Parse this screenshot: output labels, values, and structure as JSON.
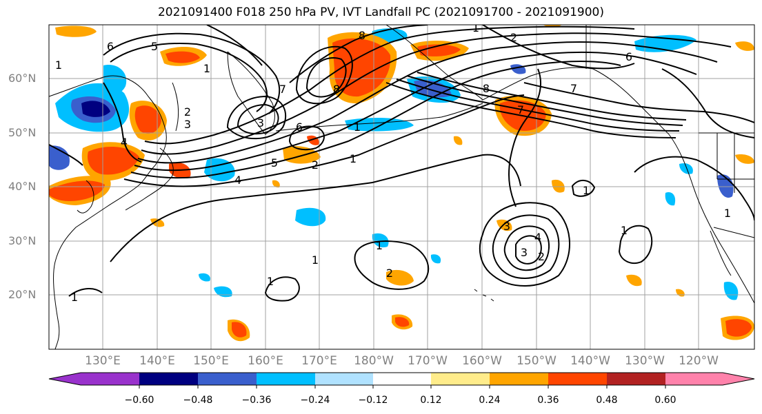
{
  "title": "2021091400 F018 250 hPa PV, IVT Landfall PC (2021091700 - 2021091900)",
  "map": {
    "latitude_labels": [
      "60°N",
      "50°N",
      "40°N",
      "30°N",
      "20°N"
    ],
    "longitude_labels": [
      "130°E",
      "140°E",
      "150°E",
      "160°E",
      "170°E",
      "180°W",
      "170°W",
      "160°W",
      "150°W",
      "140°W",
      "130°W",
      "120°W"
    ],
    "contour_labels": [
      "1",
      "2",
      "3",
      "4",
      "5",
      "6",
      "7",
      "8"
    ]
  },
  "colorbar": {
    "tick_labels": [
      "−0.60",
      "−0.48",
      "−0.36",
      "−0.24",
      "−0.12",
      "0.12",
      "0.24",
      "0.36",
      "0.48",
      "0.60"
    ],
    "colors": [
      "#9932cc",
      "#000080",
      "#3a5fcd",
      "#00bfff",
      "#b0e2ff",
      "#ffffff",
      "#ffec8b",
      "#ffa500",
      "#ff4500",
      "#b22222",
      "#ff82ab"
    ]
  }
}
